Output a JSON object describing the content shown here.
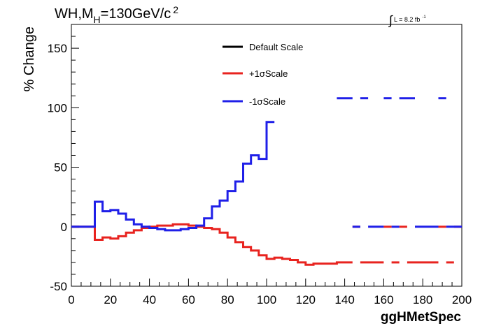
{
  "chart_data": {
    "type": "line",
    "title_main": "WH,M",
    "title_sub": "H",
    "title_rest": "=130GeV/c",
    "title_sup": "2",
    "lumi_prefix": "∫",
    "lumi_text": "L = 8.2 fb",
    "lumi_sup": "-1",
    "xlabel": "ggHMetSpec",
    "ylabel": "% Change",
    "xlim": [
      0,
      200
    ],
    "ylim": [
      -50,
      170
    ],
    "xticks": [
      0,
      20,
      40,
      60,
      80,
      100,
      120,
      140,
      160,
      180,
      200
    ],
    "yticks": [
      -50,
      0,
      50,
      100,
      150
    ],
    "grid": false,
    "legend_position": "top-center",
    "bin_width": 4,
    "series": [
      {
        "name": "Default Scale",
        "color": "#000000",
        "segments": [
          {
            "x0": 0,
            "values": [
              0
            ]
          }
        ]
      },
      {
        "name": "+1σScale",
        "color": "#e8231f",
        "segments": [
          {
            "x0": 0,
            "values": [
              0,
              0,
              0,
              -11,
              -9,
              -10,
              -8,
              -5,
              -3,
              -1,
              0,
              1,
              1,
              2,
              2,
              1,
              0,
              -1,
              -2,
              -5,
              -9,
              -13,
              -17,
              -20,
              -24,
              -27,
              -26,
              -27,
              -28,
              -30,
              -32,
              -31,
              -31,
              -31,
              -30,
              -30
            ]
          },
          {
            "x0": 144,
            "values": [
              0
            ]
          },
          {
            "x0": 148,
            "values": [
              -30,
              -30,
              -30
            ]
          },
          {
            "x0": 160,
            "values": [
              0
            ]
          },
          {
            "x0": 164,
            "values": [
              -30
            ]
          },
          {
            "x0": 168,
            "values": [
              0
            ]
          },
          {
            "x0": 172,
            "values": [
              -30,
              -30,
              -30,
              -30
            ]
          },
          {
            "x0": 188,
            "values": [
              0
            ]
          },
          {
            "x0": 192,
            "values": [
              -30
            ]
          },
          {
            "x0": 196,
            "values": [
              0
            ]
          }
        ]
      },
      {
        "name": "-1σScale",
        "color": "#1f1fe8",
        "segments": [
          {
            "x0": 0,
            "values": [
              0,
              0,
              0,
              21,
              13,
              14,
              11,
              6,
              2,
              0,
              -1,
              -2,
              -3,
              -3,
              -2,
              -1,
              1,
              7,
              17,
              22,
              30,
              38,
              53,
              60,
              57,
              88
            ]
          },
          {
            "x0": 136,
            "values": [
              108,
              108
            ]
          },
          {
            "x0": 144,
            "values": [
              0
            ]
          },
          {
            "x0": 148,
            "values": [
              108
            ]
          },
          {
            "x0": 152,
            "values": [
              0,
              0
            ]
          },
          {
            "x0": 160,
            "values": [
              108
            ]
          },
          {
            "x0": 164,
            "values": [
              0
            ]
          },
          {
            "x0": 168,
            "values": [
              108,
              108
            ]
          },
          {
            "x0": 176,
            "values": [
              0,
              0,
              0
            ]
          },
          {
            "x0": 188,
            "values": [
              108
            ]
          },
          {
            "x0": 192,
            "values": [
              0,
              0
            ]
          }
        ]
      }
    ]
  }
}
